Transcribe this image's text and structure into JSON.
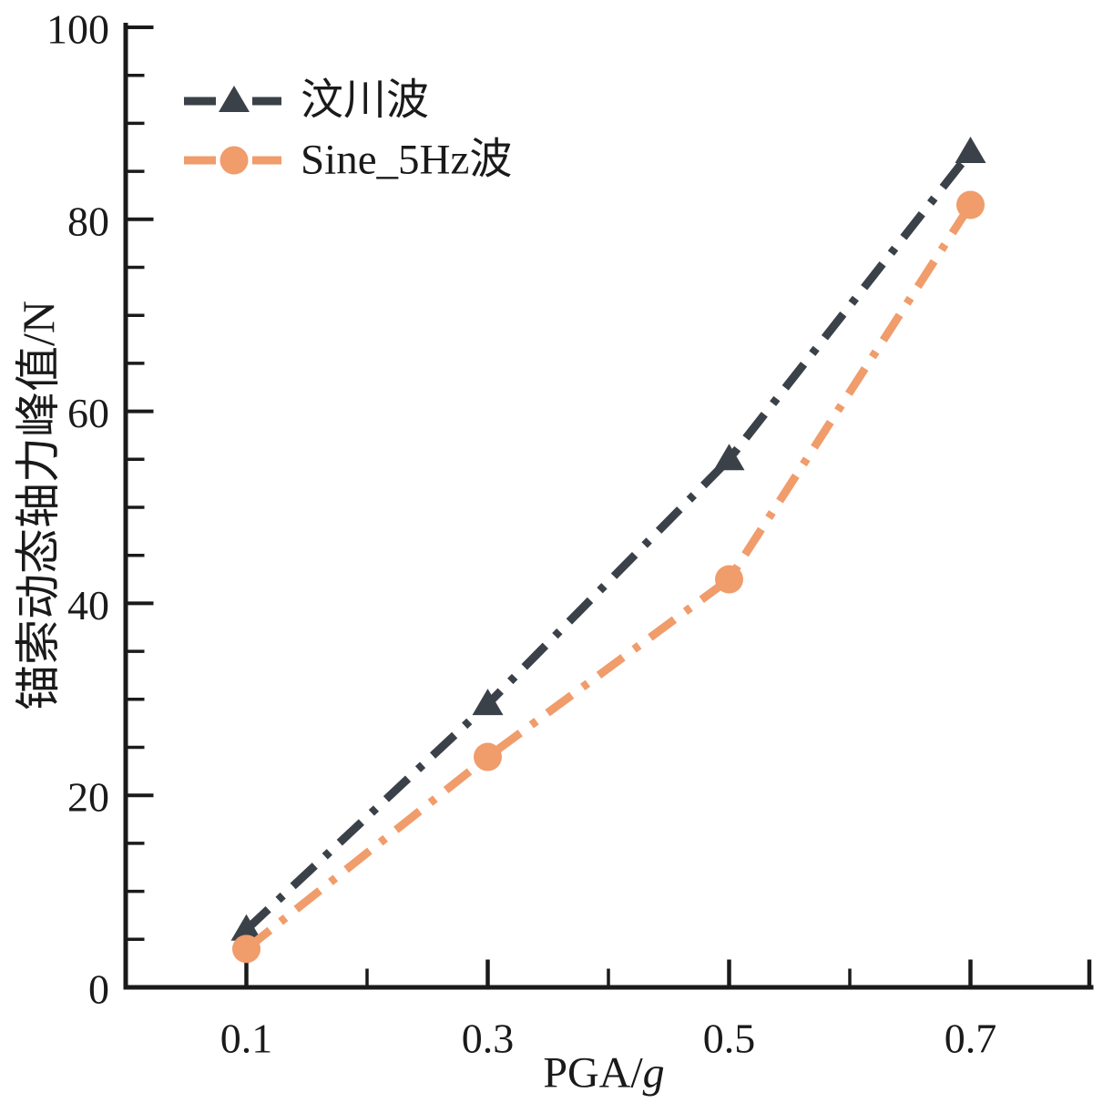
{
  "chart_data": {
    "type": "line",
    "title": "",
    "xlabel": {
      "prefix": "PGA/",
      "italic_suffix": "g"
    },
    "ylabel": "锚索动态轴力峰值/N",
    "x": [
      0.1,
      0.3,
      0.5,
      0.7
    ],
    "series": [
      {
        "name": "汶川波",
        "color": "#3b4148",
        "marker": "triangle",
        "line_style": "dash-dot",
        "values": [
          6,
          29.5,
          55,
          87
        ]
      },
      {
        "name": "Sine_5Hz波",
        "color": "#f09c6b",
        "marker": "circle",
        "line_style": "dash-dot",
        "values": [
          4,
          24,
          42.5,
          81.5
        ]
      }
    ],
    "x_axis": {
      "min": 0,
      "max": 0.8,
      "major_ticks": [
        0.1,
        0.3,
        0.5,
        0.7
      ],
      "tick_labels": [
        "0.1",
        "0.3",
        "0.5",
        "0.7"
      ],
      "minor_ticks": [
        0.2,
        0.4,
        0.6
      ],
      "end_tick": 0.8
    },
    "y_axis": {
      "min": 0,
      "max": 100,
      "major_step": 20,
      "minor_step": 5,
      "tick_labels": [
        "0",
        "20",
        "40",
        "60",
        "80",
        "100"
      ]
    },
    "legend": {
      "position": "top-left",
      "frame": false
    },
    "grid": false,
    "axis_color": "#1a1a1a",
    "background": "#ffffff"
  }
}
